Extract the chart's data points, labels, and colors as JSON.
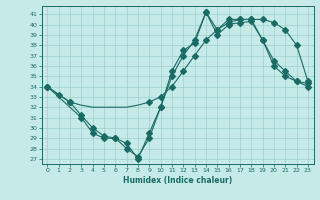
{
  "xlabel": "Humidex (Indice chaleur)",
  "bg_color": "#c5eae7",
  "grid_color": "#9dcfcb",
  "line_color": "#1a6b65",
  "xlim": [
    -0.5,
    23.5
  ],
  "ylim": [
    26.5,
    41.8
  ],
  "xticks": [
    0,
    1,
    2,
    3,
    4,
    5,
    6,
    7,
    8,
    9,
    10,
    11,
    12,
    13,
    14,
    15,
    16,
    17,
    18,
    19,
    20,
    21,
    22,
    23
  ],
  "yticks": [
    27,
    28,
    29,
    30,
    31,
    32,
    33,
    34,
    35,
    36,
    37,
    38,
    39,
    40,
    41
  ],
  "line1_x": [
    0,
    1,
    2,
    3,
    4,
    5,
    6,
    7,
    8,
    9,
    10,
    11,
    12,
    13,
    14,
    15,
    16,
    17,
    18,
    19,
    20,
    21,
    22,
    23
  ],
  "line1_y": [
    34.0,
    33.2,
    32.5,
    32.2,
    32.0,
    32.0,
    32.0,
    32.0,
    32.2,
    32.5,
    33.0,
    34.0,
    35.5,
    37.0,
    38.5,
    39.5,
    40.2,
    40.5,
    40.5,
    40.5,
    40.2,
    39.5,
    38.0,
    34.5
  ],
  "line1_mx": [
    0,
    1,
    2,
    9,
    10,
    11,
    12,
    13,
    14,
    15,
    16,
    17,
    18,
    19,
    20,
    21,
    22,
    23
  ],
  "line1_my": [
    34.0,
    33.2,
    32.5,
    32.5,
    33.0,
    34.0,
    35.5,
    37.0,
    38.5,
    39.5,
    40.2,
    40.5,
    40.5,
    40.5,
    40.2,
    39.5,
    38.0,
    34.5
  ],
  "line2_x": [
    0,
    2,
    3,
    4,
    5,
    6,
    7,
    8,
    9,
    10,
    11,
    12,
    13,
    14,
    15,
    16,
    17,
    18,
    19,
    20,
    21,
    22,
    23
  ],
  "line2_y": [
    34.0,
    32.5,
    31.2,
    30.0,
    29.2,
    29.0,
    28.0,
    27.2,
    29.0,
    32.0,
    35.0,
    37.0,
    38.5,
    41.2,
    39.0,
    40.0,
    40.2,
    40.3,
    38.5,
    36.0,
    35.0,
    34.5,
    34.0
  ],
  "line3_x": [
    0,
    3,
    4,
    5,
    6,
    7,
    8,
    9,
    10,
    11,
    12,
    13,
    14,
    15,
    16,
    17,
    18,
    19,
    20,
    21,
    22,
    23
  ],
  "line3_y": [
    34.0,
    31.0,
    29.5,
    29.0,
    29.0,
    28.5,
    27.0,
    29.5,
    32.0,
    35.5,
    37.5,
    38.2,
    41.2,
    39.5,
    40.5,
    40.5,
    40.5,
    38.5,
    36.5,
    35.5,
    34.5,
    34.3
  ]
}
